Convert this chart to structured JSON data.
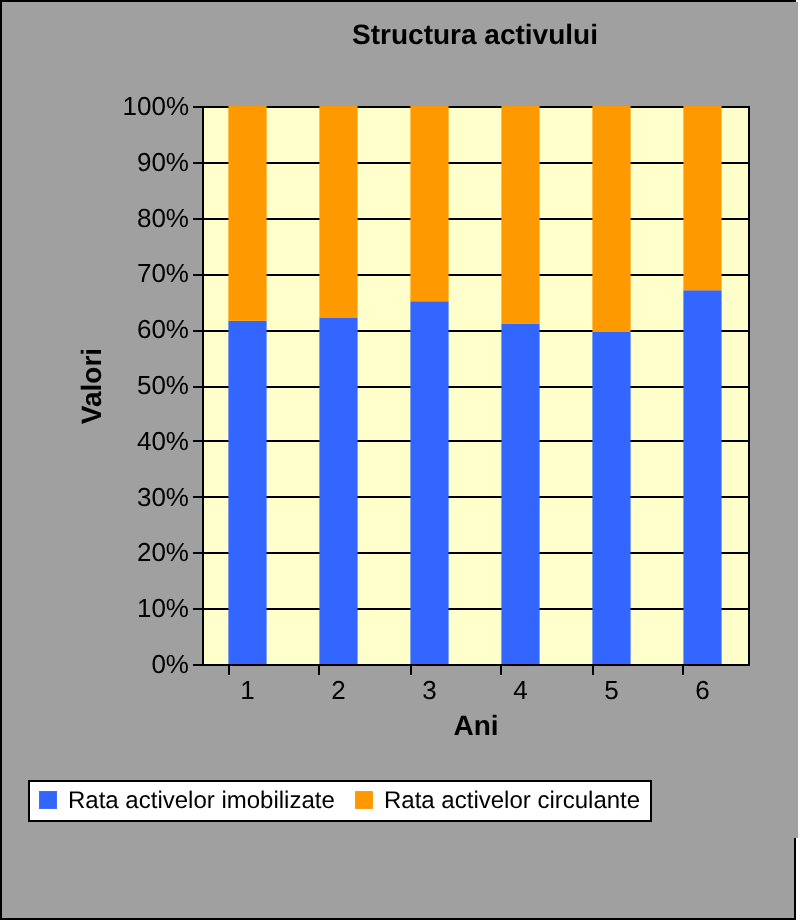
{
  "chart_data": {
    "type": "bar",
    "title": "Structura activului",
    "xlabel": "Ani",
    "ylabel": "Valori",
    "categories": [
      "1",
      "2",
      "3",
      "4",
      "5",
      "6"
    ],
    "stacked": true,
    "series": [
      {
        "name": "Rata activelor imobilizate",
        "color": "#3366ff",
        "values": [
          61.5,
          62,
          65,
          61,
          59.5,
          67
        ]
      },
      {
        "name": "Rata activelor circulante",
        "color": "#ff9900",
        "values": [
          38.5,
          38,
          35,
          39,
          40.5,
          33
        ]
      }
    ],
    "ylim": [
      0,
      100
    ],
    "yticks": [
      {
        "value": 0,
        "label": "0%"
      },
      {
        "value": 10,
        "label": "10%"
      },
      {
        "value": 20,
        "label": "20%"
      },
      {
        "value": 30,
        "label": "30%"
      },
      {
        "value": 40,
        "label": "40%"
      },
      {
        "value": 50,
        "label": "50%"
      },
      {
        "value": 60,
        "label": "60%"
      },
      {
        "value": 70,
        "label": "70%"
      },
      {
        "value": 80,
        "label": "80%"
      },
      {
        "value": 90,
        "label": "90%"
      },
      {
        "value": 100,
        "label": "100%"
      }
    ],
    "grid": "y",
    "legend": "bottom"
  }
}
